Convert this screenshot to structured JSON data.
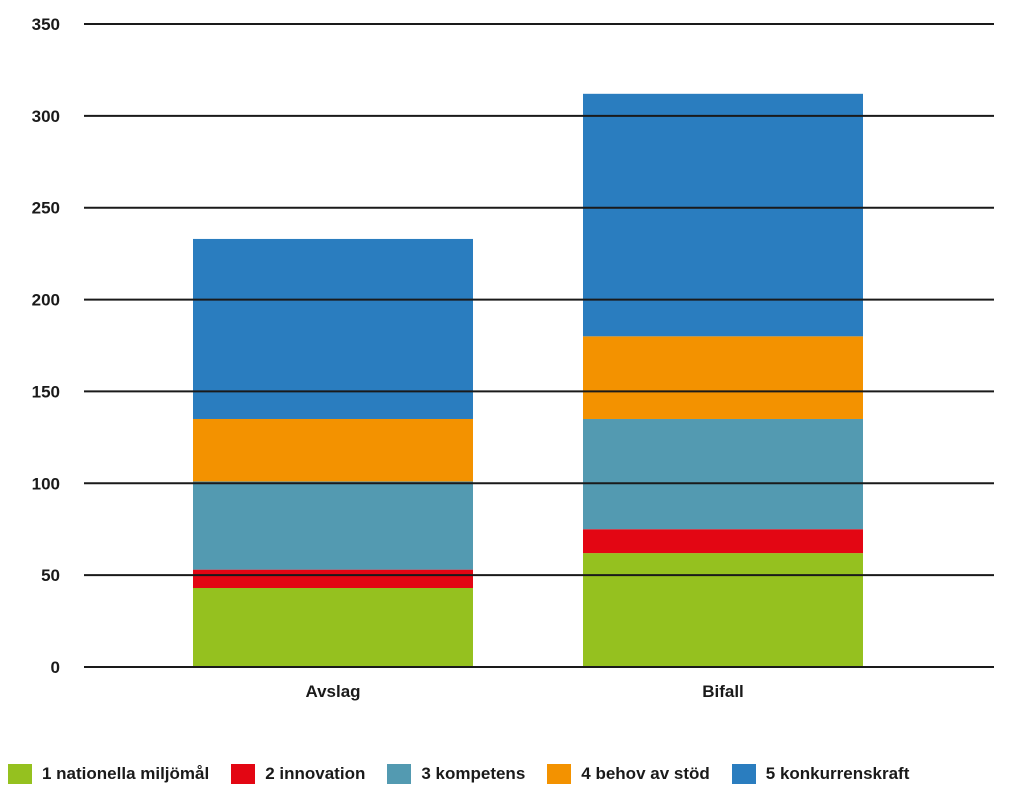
{
  "chart_data": {
    "type": "bar",
    "stacked": true,
    "title": "",
    "xlabel": "",
    "ylabel": "",
    "categories": [
      "Avslag",
      "Bifall"
    ],
    "ylim": [
      0,
      350
    ],
    "yticks": [
      0,
      50,
      100,
      150,
      200,
      250,
      300,
      350
    ],
    "grid": true,
    "legend_position": "bottom",
    "series": [
      {
        "name": "1 nationella miljömål",
        "color": "#95c11f",
        "values": [
          43,
          62
        ]
      },
      {
        "name": "2 innovation",
        "color": "#e30613",
        "values": [
          10,
          13
        ]
      },
      {
        "name": "3 kompetens",
        "color": "#539ab1",
        "values": [
          48,
          60
        ]
      },
      {
        "name": "4 behov av stöd",
        "color": "#f39200",
        "values": [
          34,
          45
        ]
      },
      {
        "name": "5 konkurrenskraft",
        "color": "#2a7dbf",
        "values": [
          98,
          132
        ]
      }
    ]
  }
}
